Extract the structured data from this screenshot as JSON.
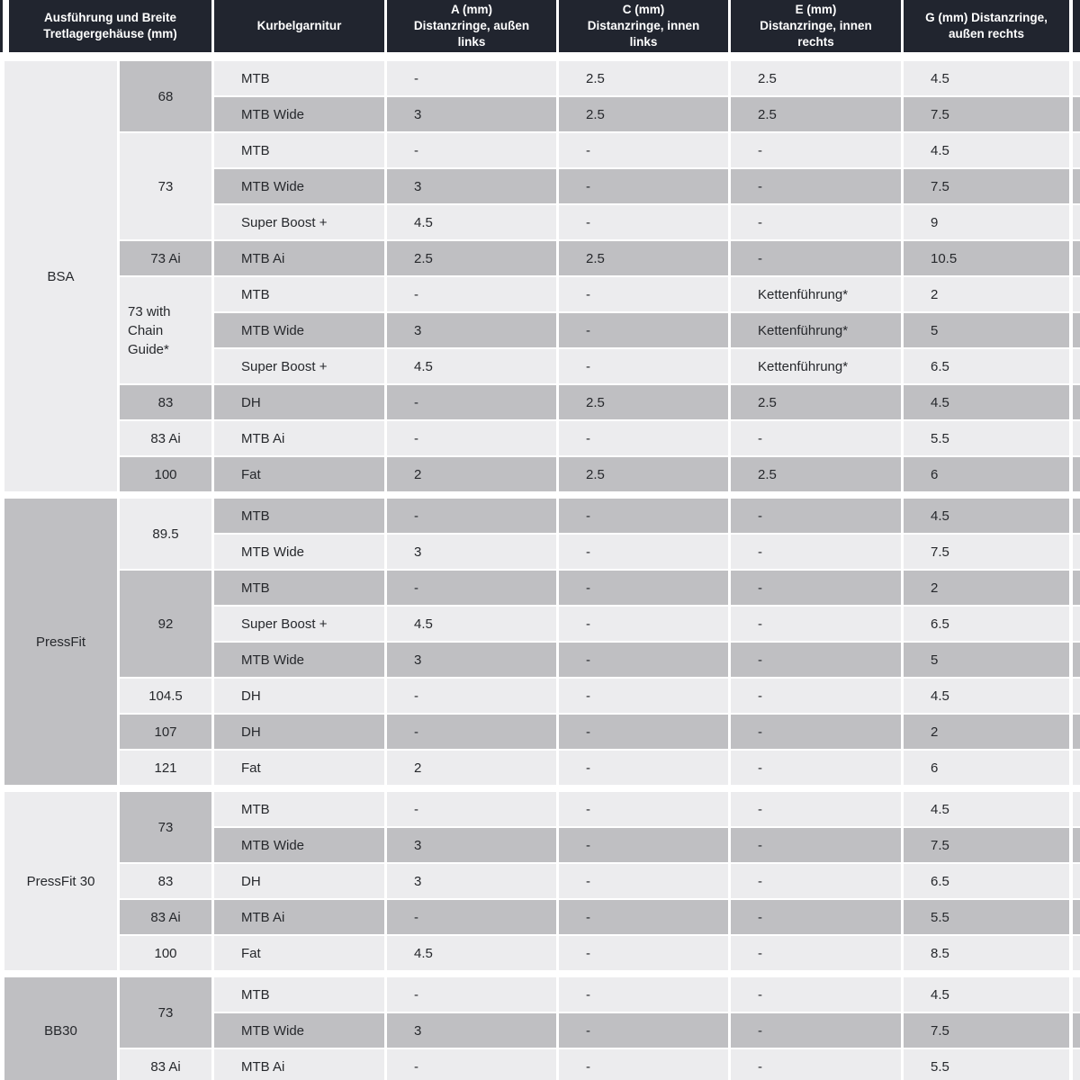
{
  "colors": {
    "header_bg": "#21252f",
    "header_text": "#ffffff",
    "row_light": "#ececee",
    "row_dark": "#bfbfc2",
    "cell_text": "#26282c",
    "background": "#ffffff"
  },
  "table": {
    "header": {
      "columns": [
        {
          "name": "ausfuehrung-und-breite",
          "lines": [
            "Ausführung und Breite",
            "Tretlagergehäuse (mm)"
          ]
        },
        {
          "name": "kurbelgarnitur",
          "lines": [
            "Kurbelgarnitur"
          ]
        },
        {
          "name": "a-mm",
          "lines": [
            "A (mm)",
            "Distanzringe, außen",
            "links"
          ]
        },
        {
          "name": "c-mm",
          "lines": [
            "C (mm)",
            "Distanzringe, innen",
            "links"
          ]
        },
        {
          "name": "e-mm",
          "lines": [
            "E (mm)",
            "Distanzringe, innen",
            "rechts"
          ]
        },
        {
          "name": "g-mm",
          "lines": [
            "G (mm) Distanzringe,",
            "außen rechts"
          ]
        }
      ]
    },
    "sections": [
      {
        "label": "BSA",
        "shade": "light",
        "groups": [
          {
            "width": "68",
            "shade": "dark",
            "rows": [
              {
                "kurbelgarnitur": "MTB",
                "shade": "light",
                "values": {
                  "a": "-",
                  "c": "2.5",
                  "e": "2.5",
                  "g": "4.5"
                }
              },
              {
                "kurbelgarnitur": "MTB Wide",
                "shade": "dark",
                "values": {
                  "a": "3",
                  "c": "2.5",
                  "e": "2.5",
                  "g": "7.5"
                }
              }
            ]
          },
          {
            "width": "73",
            "shade": "light",
            "rows": [
              {
                "kurbelgarnitur": "MTB",
                "shade": "light",
                "values": {
                  "a": "-",
                  "c": "-",
                  "e": "-",
                  "g": "4.5"
                }
              },
              {
                "kurbelgarnitur": "MTB Wide",
                "shade": "dark",
                "values": {
                  "a": "3",
                  "c": "-",
                  "e": "-",
                  "g": "7.5"
                }
              },
              {
                "kurbelgarnitur": "Super Boost +",
                "shade": "light",
                "values": {
                  "a": "4.5",
                  "c": "-",
                  "e": "-",
                  "g": "9"
                }
              }
            ]
          },
          {
            "width": "73 Ai",
            "shade": "dark",
            "rows": [
              {
                "kurbelgarnitur": "MTB Ai",
                "shade": "dark",
                "values": {
                  "a": "2.5",
                  "c": "2.5",
                  "e": "-",
                  "g": "10.5"
                }
              }
            ]
          },
          {
            "width": "73 with Chain Guide*",
            "shade": "light",
            "rows": [
              {
                "kurbelgarnitur": "MTB",
                "shade": "light",
                "values": {
                  "a": "-",
                  "c": "-",
                  "e": "Kettenführung*",
                  "g": "2"
                }
              },
              {
                "kurbelgarnitur": "MTB Wide",
                "shade": "dark",
                "values": {
                  "a": "3",
                  "c": "-",
                  "e": "Kettenführung*",
                  "g": "5"
                }
              },
              {
                "kurbelgarnitur": "Super Boost +",
                "shade": "light",
                "values": {
                  "a": "4.5",
                  "c": "-",
                  "e": "Kettenführung*",
                  "g": "6.5"
                }
              }
            ]
          },
          {
            "width": "83",
            "shade": "dark",
            "rows": [
              {
                "kurbelgarnitur": "DH",
                "shade": "dark",
                "values": {
                  "a": "-",
                  "c": "2.5",
                  "e": "2.5",
                  "g": "4.5"
                }
              }
            ]
          },
          {
            "width": "83 Ai",
            "shade": "light",
            "rows": [
              {
                "kurbelgarnitur": "MTB Ai",
                "shade": "light",
                "values": {
                  "a": "-",
                  "c": "-",
                  "e": "-",
                  "g": "5.5"
                }
              }
            ]
          },
          {
            "width": "100",
            "shade": "dark",
            "rows": [
              {
                "kurbelgarnitur": "Fat",
                "shade": "dark",
                "values": {
                  "a": "2",
                  "c": "2.5",
                  "e": "2.5",
                  "g": "6"
                }
              }
            ]
          }
        ]
      },
      {
        "label": "PressFit",
        "shade": "dark",
        "groups": [
          {
            "width": "89.5",
            "shade": "light",
            "rows": [
              {
                "kurbelgarnitur": "MTB",
                "shade": "dark",
                "values": {
                  "a": "-",
                  "c": "-",
                  "e": "-",
                  "g": "4.5"
                }
              },
              {
                "kurbelgarnitur": "MTB Wide",
                "shade": "light",
                "values": {
                  "a": "3",
                  "c": "-",
                  "e": "-",
                  "g": "7.5"
                }
              }
            ]
          },
          {
            "width": "92",
            "shade": "dark",
            "rows": [
              {
                "kurbelgarnitur": "MTB",
                "shade": "dark",
                "values": {
                  "a": "-",
                  "c": "-",
                  "e": "-",
                  "g": "2"
                }
              },
              {
                "kurbelgarnitur": "Super Boost +",
                "shade": "light",
                "values": {
                  "a": "4.5",
                  "c": "-",
                  "e": "-",
                  "g": "6.5"
                }
              },
              {
                "kurbelgarnitur": "MTB Wide",
                "shade": "dark",
                "values": {
                  "a": "3",
                  "c": "-",
                  "e": "-",
                  "g": "5"
                }
              }
            ]
          },
          {
            "width": "104.5",
            "shade": "light",
            "rows": [
              {
                "kurbelgarnitur": "DH",
                "shade": "light",
                "values": {
                  "a": "-",
                  "c": "-",
                  "e": "-",
                  "g": "4.5"
                }
              }
            ]
          },
          {
            "width": "107",
            "shade": "dark",
            "rows": [
              {
                "kurbelgarnitur": "DH",
                "shade": "dark",
                "values": {
                  "a": "-",
                  "c": "-",
                  "e": "-",
                  "g": "2"
                }
              }
            ]
          },
          {
            "width": "121",
            "shade": "light",
            "rows": [
              {
                "kurbelgarnitur": "Fat",
                "shade": "light",
                "values": {
                  "a": "2",
                  "c": "-",
                  "e": "-",
                  "g": "6"
                }
              }
            ]
          }
        ]
      },
      {
        "label": "PressFit 30",
        "shade": "light",
        "groups": [
          {
            "width": "73",
            "shade": "dark",
            "rows": [
              {
                "kurbelgarnitur": "MTB",
                "shade": "light",
                "values": {
                  "a": "-",
                  "c": "-",
                  "e": "-",
                  "g": "4.5"
                }
              },
              {
                "kurbelgarnitur": "MTB Wide",
                "shade": "dark",
                "values": {
                  "a": "3",
                  "c": "-",
                  "e": "-",
                  "g": "7.5"
                }
              }
            ]
          },
          {
            "width": "83",
            "shade": "light",
            "rows": [
              {
                "kurbelgarnitur": "DH",
                "shade": "light",
                "values": {
                  "a": "3",
                  "c": "-",
                  "e": "-",
                  "g": "6.5"
                }
              }
            ]
          },
          {
            "width": "83 Ai",
            "shade": "dark",
            "rows": [
              {
                "kurbelgarnitur": "MTB Ai",
                "shade": "dark",
                "values": {
                  "a": "-",
                  "c": "-",
                  "e": "-",
                  "g": "5.5"
                }
              }
            ]
          },
          {
            "width": "100",
            "shade": "light",
            "rows": [
              {
                "kurbelgarnitur": "Fat",
                "shade": "light",
                "values": {
                  "a": "4.5",
                  "c": "-",
                  "e": "-",
                  "g": "8.5"
                }
              }
            ]
          }
        ]
      },
      {
        "label": "BB30",
        "shade": "dark",
        "groups": [
          {
            "width": "73",
            "shade": "dark",
            "rows": [
              {
                "kurbelgarnitur": "MTB",
                "shade": "light",
                "values": {
                  "a": "-",
                  "c": "-",
                  "e": "-",
                  "g": "4.5"
                }
              },
              {
                "kurbelgarnitur": "MTB Wide",
                "shade": "dark",
                "values": {
                  "a": "3",
                  "c": "-",
                  "e": "-",
                  "g": "7.5"
                }
              }
            ]
          },
          {
            "width": "83 Ai",
            "shade": "light",
            "rows": [
              {
                "kurbelgarnitur": "MTB Ai",
                "shade": "light",
                "values": {
                  "a": "-",
                  "c": "-",
                  "e": "-",
                  "g": "5.5"
                }
              }
            ]
          }
        ]
      }
    ]
  }
}
